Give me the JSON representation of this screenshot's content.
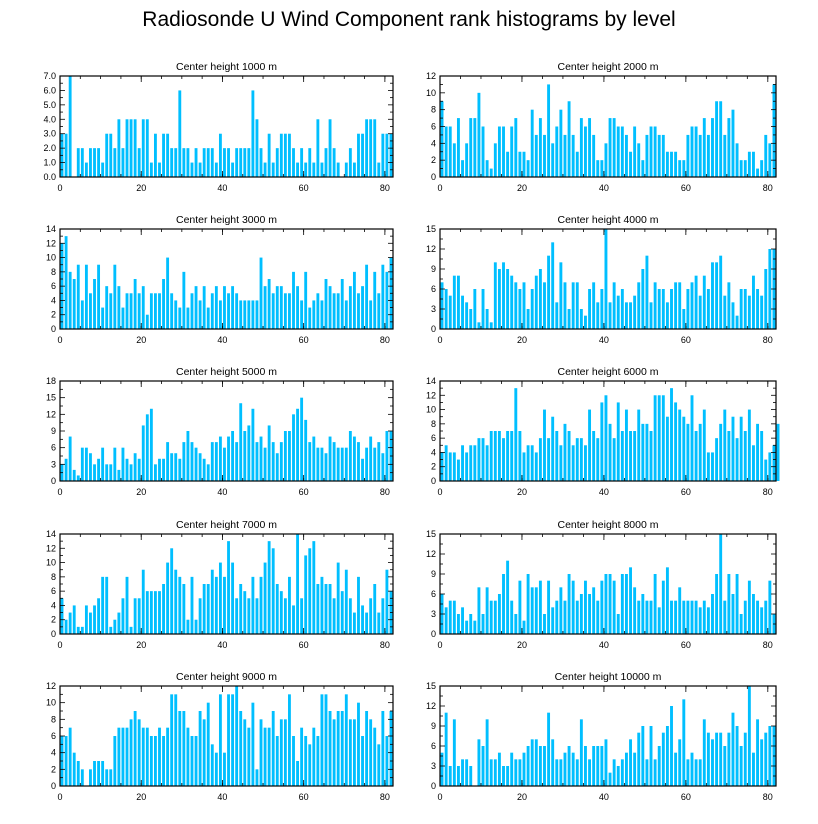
{
  "title": "Radiosonde U Wind Component rank histograms by level",
  "chart_data": [
    {
      "type": "bar",
      "title": "Center height 1000 m",
      "xlim": [
        0,
        82
      ],
      "ylim": [
        0,
        7
      ],
      "yticks": [
        0,
        1,
        2,
        3,
        4,
        5,
        6,
        7
      ],
      "ytick_labels": [
        "0.0",
        "1.0",
        "2.0",
        "3.0",
        "4.0",
        "5.0",
        "6.0",
        "7.0"
      ],
      "xticks": [
        0,
        20,
        40,
        60,
        80
      ],
      "xtick_labels": [
        "0",
        "20",
        "40",
        "60",
        "80"
      ],
      "values": [
        3,
        3,
        7,
        0,
        2,
        2,
        1,
        2,
        2,
        2,
        1,
        3,
        3,
        2,
        4,
        2,
        4,
        4,
        4,
        2,
        4,
        4,
        1,
        3,
        1,
        3,
        3,
        2,
        2,
        6,
        2,
        2,
        1,
        2,
        1,
        2,
        2,
        2,
        1,
        3,
        2,
        2,
        1,
        2,
        2,
        2,
        2,
        6,
        4,
        2,
        1,
        3,
        1,
        2,
        3,
        3,
        3,
        2,
        1,
        2,
        1,
        2,
        1,
        4,
        1,
        2,
        4,
        2,
        1,
        0,
        1,
        2,
        1,
        3,
        3,
        4,
        4,
        4,
        1,
        3,
        3,
        3
      ]
    },
    {
      "type": "bar",
      "title": "Center height 2000 m",
      "xlim": [
        0,
        82
      ],
      "ylim": [
        0,
        12
      ],
      "yticks": [
        0,
        2,
        4,
        6,
        8,
        10,
        12
      ],
      "ytick_labels": [
        "0",
        "2",
        "4",
        "6",
        "8",
        "10",
        "12"
      ],
      "xticks": [
        0,
        20,
        40,
        60,
        80
      ],
      "xtick_labels": [
        "0",
        "20",
        "40",
        "60",
        "80"
      ],
      "values": [
        9,
        6,
        6,
        4,
        7,
        2,
        4,
        7,
        7,
        10,
        6,
        2,
        1,
        4,
        6,
        6,
        3,
        6,
        7,
        3,
        3,
        2,
        8,
        5,
        7,
        5,
        11,
        4,
        6,
        8,
        5,
        9,
        5,
        3,
        7,
        6,
        7,
        5,
        2,
        2,
        4,
        7,
        7,
        6,
        6,
        5,
        3,
        6,
        4,
        2,
        5,
        6,
        6,
        5,
        5,
        3,
        3,
        3,
        2,
        2,
        5,
        6,
        6,
        5,
        7,
        5,
        7,
        9,
        9,
        5,
        7,
        8,
        4,
        2,
        2,
        3,
        3,
        1,
        2,
        5,
        4,
        11
      ]
    },
    {
      "type": "bar",
      "title": "Center height 3000 m",
      "xlim": [
        0,
        82
      ],
      "ylim": [
        0,
        14
      ],
      "yticks": [
        0,
        2,
        4,
        6,
        8,
        10,
        12,
        14
      ],
      "ytick_labels": [
        "0",
        "2",
        "4",
        "6",
        "8",
        "10",
        "12",
        "14"
      ],
      "xticks": [
        0,
        20,
        40,
        60,
        80
      ],
      "xtick_labels": [
        "0",
        "20",
        "40",
        "60",
        "80"
      ],
      "values": [
        12,
        13,
        8,
        7,
        9,
        4,
        9,
        5,
        7,
        9,
        3,
        6,
        5,
        9,
        6,
        3,
        5,
        5,
        7,
        5,
        6,
        2,
        5,
        5,
        5,
        7,
        10,
        5,
        4,
        3,
        8,
        3,
        5,
        6,
        4,
        6,
        3,
        5,
        6,
        4,
        6,
        5,
        6,
        5,
        4,
        4,
        4,
        4,
        4,
        10,
        6,
        7,
        5,
        6,
        6,
        5,
        5,
        8,
        6,
        4,
        8,
        3,
        4,
        5,
        4,
        7,
        6,
        5,
        5,
        7,
        4,
        6,
        8,
        5,
        6,
        9,
        4,
        8,
        5,
        9,
        8,
        10
      ]
    },
    {
      "type": "bar",
      "title": "Center height 4000 m",
      "xlim": [
        0,
        82
      ],
      "ylim": [
        0,
        15
      ],
      "yticks": [
        0,
        3,
        6,
        9,
        12,
        15
      ],
      "ytick_labels": [
        "0",
        "3",
        "6",
        "9",
        "12",
        "15"
      ],
      "xticks": [
        0,
        20,
        40,
        60,
        80
      ],
      "xtick_labels": [
        "0",
        "20",
        "40",
        "60",
        "80"
      ],
      "values": [
        7,
        6,
        5,
        8,
        8,
        5,
        4,
        3,
        6,
        1,
        6,
        3,
        1,
        10,
        9,
        10,
        9,
        8,
        7,
        6,
        7,
        3,
        6,
        8,
        9,
        7,
        11,
        13,
        4,
        10,
        7,
        3,
        7,
        7,
        3,
        2,
        6,
        7,
        4,
        6,
        15,
        4,
        7,
        5,
        6,
        4,
        4,
        5,
        7,
        9,
        11,
        4,
        7,
        6,
        6,
        4,
        6,
        7,
        7,
        3,
        6,
        7,
        8,
        5,
        8,
        6,
        10,
        10,
        11,
        5,
        7,
        4,
        2,
        6,
        6,
        5,
        8,
        6,
        5,
        9,
        12,
        12
      ]
    },
    {
      "type": "bar",
      "title": "Center height 5000 m",
      "xlim": [
        0,
        82
      ],
      "ylim": [
        0,
        18
      ],
      "yticks": [
        0,
        3,
        6,
        9,
        12,
        15,
        18
      ],
      "ytick_labels": [
        "0",
        "3",
        "6",
        "9",
        "12",
        "15",
        "18"
      ],
      "xticks": [
        0,
        20,
        40,
        60,
        80
      ],
      "xtick_labels": [
        "0",
        "20",
        "40",
        "60",
        "80"
      ],
      "values": [
        3,
        4,
        8,
        2,
        1,
        6,
        6,
        5,
        3,
        4,
        6,
        3,
        3,
        6,
        2,
        6,
        4,
        3,
        5,
        4,
        10,
        12,
        13,
        3,
        4,
        4,
        7,
        5,
        5,
        4,
        7,
        9,
        7,
        6,
        5,
        4,
        3,
        7,
        7,
        8,
        6,
        8,
        9,
        7,
        14,
        9,
        10,
        13,
        7,
        8,
        6,
        10,
        7,
        5,
        7,
        9,
        9,
        12,
        13,
        15,
        11,
        7,
        8,
        6,
        6,
        5,
        8,
        7,
        6,
        6,
        6,
        9,
        8,
        7,
        4,
        6,
        8,
        6,
        7,
        5,
        9,
        9
      ]
    },
    {
      "type": "bar",
      "title": "Center height 6000 m",
      "xlim": [
        0,
        82
      ],
      "ylim": [
        0,
        14
      ],
      "yticks": [
        0,
        2,
        4,
        6,
        8,
        10,
        12,
        14
      ],
      "ytick_labels": [
        "0",
        "2",
        "4",
        "6",
        "8",
        "10",
        "12",
        "14"
      ],
      "xticks": [
        0,
        20,
        40,
        60,
        80
      ],
      "xtick_labels": [
        "0",
        "20",
        "40",
        "60",
        "80"
      ],
      "values": [
        4,
        5,
        4,
        4,
        3,
        5,
        4,
        5,
        5,
        6,
        6,
        5,
        7,
        7,
        7,
        6,
        7,
        7,
        13,
        7,
        4,
        5,
        5,
        4,
        6,
        10,
        6,
        9,
        7,
        5,
        8,
        7,
        5,
        6,
        6,
        5,
        10,
        7,
        6,
        11,
        12,
        8,
        6,
        11,
        7,
        10,
        7,
        7,
        10,
        8,
        8,
        7,
        12,
        12,
        12,
        9,
        13,
        11,
        10,
        9,
        8,
        12,
        7,
        8,
        10,
        4,
        4,
        6,
        8,
        10,
        7,
        9,
        6,
        9,
        7,
        10,
        5,
        8,
        7,
        3,
        4,
        5,
        8
      ]
    },
    {
      "type": "bar",
      "title": "Center height 7000 m",
      "xlim": [
        0,
        82
      ],
      "ylim": [
        0,
        14
      ],
      "yticks": [
        0,
        2,
        4,
        6,
        8,
        10,
        12,
        14
      ],
      "ytick_labels": [
        "0",
        "2",
        "4",
        "6",
        "8",
        "10",
        "12",
        "14"
      ],
      "xticks": [
        0,
        20,
        40,
        60,
        80
      ],
      "xtick_labels": [
        "0",
        "20",
        "40",
        "60",
        "80"
      ],
      "values": [
        5,
        2,
        3,
        4,
        1,
        1,
        4,
        3,
        4,
        5,
        8,
        8,
        1,
        2,
        3,
        5,
        8,
        1,
        5,
        5,
        9,
        6,
        6,
        6,
        6,
        7,
        10,
        12,
        9,
        8,
        7,
        2,
        8,
        2,
        5,
        7,
        7,
        9,
        8,
        10,
        8,
        13,
        10,
        5,
        7,
        6,
        5,
        8,
        5,
        8,
        10,
        13,
        12,
        7,
        6,
        5,
        8,
        4,
        14,
        5,
        11,
        12,
        13,
        7,
        8,
        7,
        7,
        5,
        10,
        6,
        9,
        5,
        3,
        8,
        4,
        3,
        5,
        7,
        3,
        5,
        9,
        6
      ]
    },
    {
      "type": "bar",
      "title": "Center height 8000 m",
      "xlim": [
        0,
        82
      ],
      "ylim": [
        0,
        15
      ],
      "yticks": [
        0,
        3,
        6,
        9,
        12,
        15
      ],
      "ytick_labels": [
        "0",
        "3",
        "6",
        "9",
        "12",
        "15"
      ],
      "xticks": [
        0,
        20,
        40,
        60,
        80
      ],
      "xtick_labels": [
        "0",
        "20",
        "40",
        "60",
        "80"
      ],
      "values": [
        6,
        4,
        5,
        5,
        3,
        4,
        2,
        3,
        2,
        7,
        3,
        7,
        5,
        5,
        6,
        9,
        11,
        5,
        3,
        8,
        2,
        9,
        7,
        7,
        8,
        3,
        8,
        4,
        5,
        7,
        5,
        9,
        8,
        5,
        6,
        8,
        6,
        7,
        5,
        8,
        9,
        9,
        8,
        3,
        9,
        9,
        10,
        7,
        5,
        6,
        5,
        5,
        9,
        4,
        8,
        10,
        5,
        5,
        7,
        5,
        5,
        5,
        5,
        4,
        5,
        4,
        6,
        9,
        15,
        5,
        9,
        6,
        9,
        3,
        5,
        8,
        6,
        5,
        4,
        5,
        8,
        3
      ]
    },
    {
      "type": "bar",
      "title": "Center height 9000 m",
      "xlim": [
        0,
        82
      ],
      "ylim": [
        0,
        12
      ],
      "yticks": [
        0,
        2,
        4,
        6,
        8,
        10,
        12
      ],
      "ytick_labels": [
        "0",
        "2",
        "4",
        "6",
        "8",
        "10",
        "12"
      ],
      "xticks": [
        0,
        20,
        40,
        60,
        80
      ],
      "xtick_labels": [
        "0",
        "20",
        "40",
        "60",
        "80"
      ],
      "values": [
        6,
        6,
        7,
        4,
        3,
        2,
        0,
        2,
        3,
        3,
        3,
        2,
        2,
        6,
        7,
        7,
        7,
        8,
        9,
        8,
        7,
        7,
        6,
        6,
        7,
        6,
        7,
        11,
        11,
        9,
        9,
        7,
        6,
        6,
        9,
        8,
        10,
        5,
        4,
        11,
        4,
        11,
        11,
        12,
        9,
        8,
        7,
        10,
        2,
        8,
        7,
        7,
        9,
        6,
        8,
        8,
        11,
        6,
        3,
        7,
        6,
        5,
        7,
        6,
        11,
        11,
        9,
        8,
        9,
        9,
        11,
        8,
        8,
        10,
        6,
        9,
        8,
        7,
        5,
        9,
        6,
        9
      ]
    },
    {
      "type": "bar",
      "title": "Center height 10000 m",
      "xlim": [
        0,
        82
      ],
      "ylim": [
        0,
        15
      ],
      "yticks": [
        0,
        3,
        6,
        9,
        12,
        15
      ],
      "ytick_labels": [
        "0",
        "3",
        "6",
        "9",
        "12",
        "15"
      ],
      "xticks": [
        0,
        20,
        40,
        60,
        80
      ],
      "xtick_labels": [
        "0",
        "20",
        "40",
        "60",
        "80"
      ],
      "values": [
        5,
        11,
        3,
        10,
        3,
        4,
        4,
        3,
        0,
        7,
        6,
        10,
        4,
        4,
        5,
        3,
        3,
        5,
        4,
        4,
        5,
        6,
        7,
        7,
        6,
        6,
        11,
        7,
        4,
        4,
        5,
        6,
        5,
        4,
        10,
        6,
        4,
        6,
        6,
        6,
        7,
        2,
        4,
        3,
        4,
        5,
        7,
        5,
        8,
        9,
        4,
        9,
        4,
        6,
        8,
        9,
        12,
        5,
        7,
        13,
        4,
        5,
        4,
        4,
        10,
        8,
        7,
        8,
        8,
        6,
        8,
        11,
        9,
        6,
        8,
        15,
        5,
        10,
        7,
        8,
        9,
        9
      ]
    }
  ]
}
